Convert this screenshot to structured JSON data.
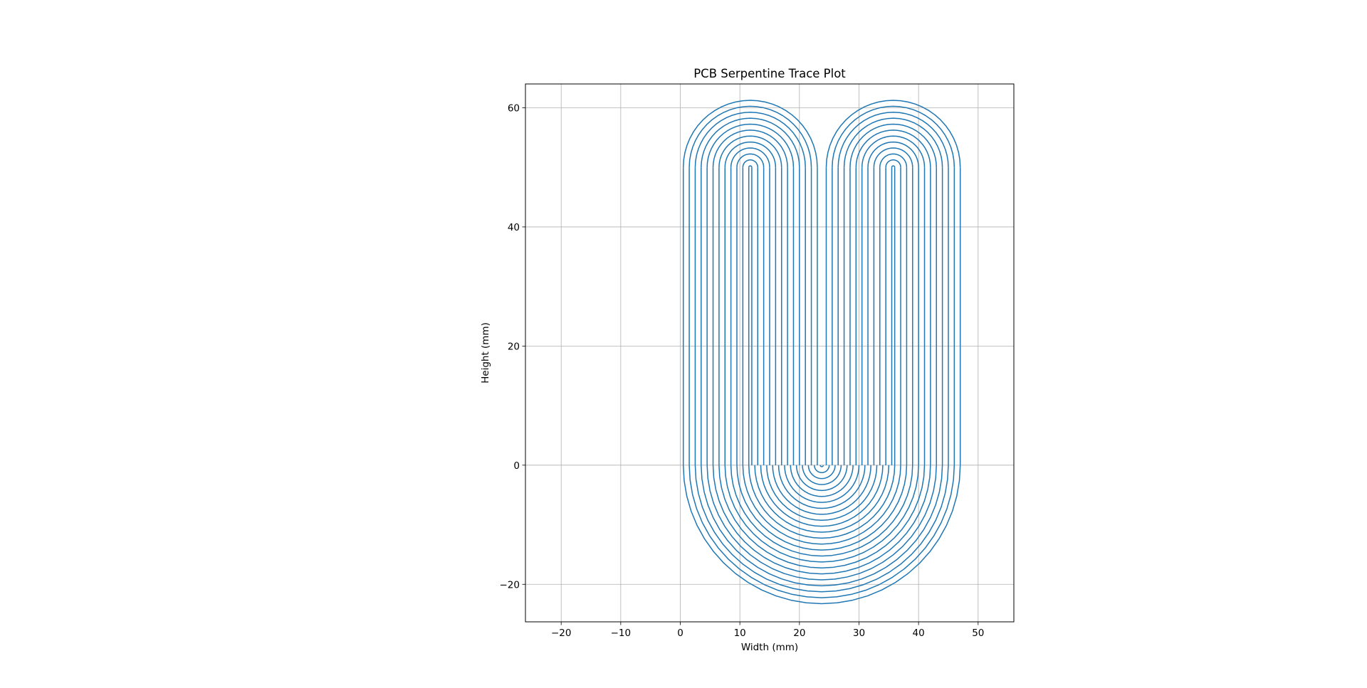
{
  "chart_data": {
    "type": "line",
    "title": "PCB Serpentine Trace Plot",
    "xlabel": "Width (mm)",
    "ylabel": "Height (mm)",
    "xlim": [
      -26,
      56
    ],
    "ylim": [
      -26.3,
      64
    ],
    "grid": true,
    "legend": "none",
    "xticks": [
      -20,
      -10,
      0,
      10,
      20,
      30,
      40,
      50
    ],
    "yticks": [
      -20,
      0,
      20,
      40,
      60
    ],
    "xtick_labels": [
      "−20",
      "−10",
      "0",
      "10",
      "20",
      "30",
      "40",
      "50"
    ],
    "ytick_labels": [
      "−20",
      "0",
      "20",
      "40",
      "60"
    ],
    "color": "#1f77b4",
    "series": [
      {
        "name": "serpentine trace",
        "shape": "three nested U-turn families joined by straight vertical runs",
        "start": [
          0,
          0
        ],
        "x_extent": [
          0,
          47.5
        ],
        "y_extent": [
          -23.5,
          61.6
        ],
        "straight_run_y": [
          0,
          50
        ],
        "trace_pitch_mm": 1,
        "top_left_center": [
          11.75,
          50
        ],
        "top_left_radii": [
          0.25,
          11.75
        ],
        "top_right_center": [
          35.75,
          50
        ],
        "top_right_radii": [
          0.25,
          11.75
        ],
        "bottom_center": [
          23.75,
          0
        ],
        "bottom_radii": [
          0.25,
          23.75
        ]
      }
    ]
  }
}
